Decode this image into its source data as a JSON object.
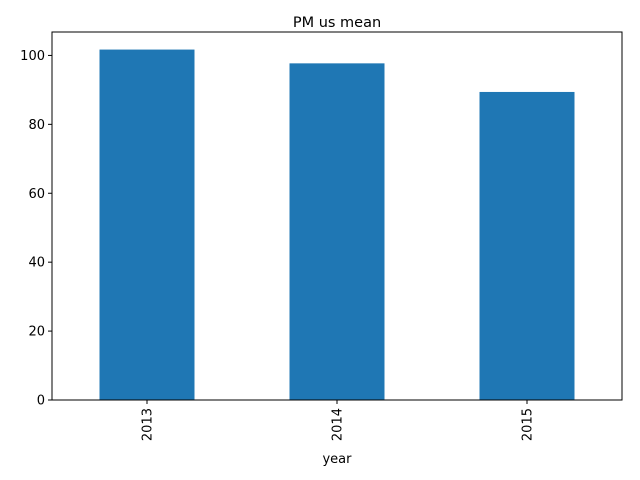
{
  "chart_data": {
    "type": "bar",
    "title": "PM us mean",
    "xlabel": "year",
    "ylabel": "",
    "categories": [
      "2013",
      "2014",
      "2015"
    ],
    "values": [
      101.7,
      97.7,
      89.4
    ],
    "ylim": [
      0,
      106.8
    ],
    "yticks": [
      0,
      20,
      40,
      60,
      80,
      100
    ],
    "grid": false,
    "legend": "none",
    "bar_color": "#1f77b4",
    "xtick_rotation": 90
  }
}
